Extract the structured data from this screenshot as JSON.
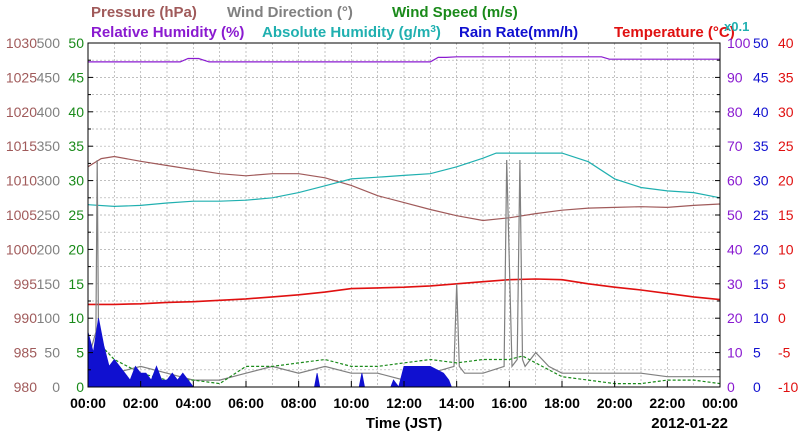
{
  "chart_data": {
    "type": "line",
    "date": "2012-01-22",
    "xlabel": "Time (JST)",
    "x_ticks": [
      "00:00",
      "02:00",
      "04:00",
      "06:00",
      "08:00",
      "10:00",
      "12:00",
      "14:00",
      "16:00",
      "18:00",
      "20:00",
      "22:00",
      "00:00"
    ],
    "xlim_hours": [
      0,
      24
    ],
    "grid": true,
    "legend_rows": [
      [
        {
          "name": "Pressure (hPa)",
          "color": "#a05a5a"
        },
        {
          "name": "Wind Direction (°)",
          "color": "#808080"
        },
        {
          "name": "Wind Speed (m/s)",
          "color": "#1a8a1a"
        }
      ],
      [
        {
          "name": "Relative Humidity (%)",
          "color": "#8a1ad0"
        },
        {
          "name": "Absolute Humidity (g/m",
          "sup": "3",
          "tail": ")",
          "color": "#20b0b0"
        },
        {
          "name": "Rain Rate(mm/h)",
          "color": "#1010d0"
        },
        {
          "name": "Temperature (°C)",
          "color": "#e01010"
        }
      ]
    ],
    "abs_humidity_scale_note": "x0.1",
    "axes": [
      {
        "id": "pressure",
        "side": "left",
        "color": "#a05a5a",
        "range": [
          980,
          1030
        ],
        "ticks": [
          "1030",
          "1025",
          "1020",
          "1015",
          "1010",
          "1005",
          "1000",
          "995",
          "990",
          "985",
          "980"
        ]
      },
      {
        "id": "wind_dir",
        "side": "left",
        "color": "#808080",
        "range": [
          0,
          500
        ],
        "ticks": [
          "500",
          "450",
          "400",
          "350",
          "300",
          "250",
          "200",
          "150",
          "100",
          "50",
          "0"
        ]
      },
      {
        "id": "wind_speed",
        "side": "left",
        "color": "#1a8a1a",
        "range": [
          0,
          50
        ],
        "ticks": [
          "50",
          "45",
          "40",
          "35",
          "30",
          "25",
          "20",
          "15",
          "10",
          "5",
          "0"
        ]
      },
      {
        "id": "rel_humidity",
        "side": "right",
        "color": "#8a1ad0",
        "range": [
          0,
          100
        ],
        "ticks": [
          "100",
          "90",
          "80",
          "70",
          "60",
          "50",
          "40",
          "30",
          "20",
          "10",
          "0"
        ]
      },
      {
        "id": "rain_rate",
        "side": "right",
        "color": "#1010d0",
        "range": [
          0,
          50
        ],
        "ticks": [
          "50",
          "45",
          "40",
          "35",
          "30",
          "25",
          "20",
          "15",
          "10",
          "5",
          "0"
        ]
      },
      {
        "id": "temperature",
        "side": "right",
        "color": "#e01010",
        "range": [
          -10,
          40
        ],
        "ticks": [
          "40",
          "35",
          "30",
          "25",
          "20",
          "15",
          "10",
          "5",
          "0",
          "-5",
          "-10"
        ]
      }
    ],
    "series": [
      {
        "name": "Pressure (hPa)",
        "axis": "pressure",
        "color": "#a05a5a",
        "x": [
          0,
          0.5,
          1,
          2,
          3,
          4,
          5,
          6,
          7,
          8,
          9,
          10,
          11,
          12,
          13,
          14,
          15,
          16,
          17,
          18,
          19,
          20,
          21,
          22,
          23,
          24
        ],
        "values": [
          1012,
          1013.2,
          1013.5,
          1012.8,
          1012.2,
          1011.6,
          1011.0,
          1010.7,
          1011.0,
          1011.0,
          1010.4,
          1009.3,
          1007.8,
          1006.8,
          1005.8,
          1004.9,
          1004.2,
          1004.6,
          1005.2,
          1005.7,
          1006.0,
          1006.1,
          1006.2,
          1006.1,
          1006.4,
          1006.6
        ]
      },
      {
        "name": "Relative Humidity (%)",
        "axis": "rel_humidity",
        "color": "#8a1ad0",
        "x": [
          0,
          3.5,
          3.8,
          4.2,
          4.6,
          13,
          13.3,
          13.6,
          14,
          19.5,
          19.8,
          20.1,
          20.4,
          24
        ],
        "values": [
          94.5,
          94.5,
          95.5,
          95.5,
          94.5,
          94.5,
          95.8,
          95.8,
          96,
          96,
          95.3,
          95.3,
          95.3,
          95.3
        ]
      },
      {
        "name": "Absolute Humidity (g/m³)",
        "axis": "rel_humidity",
        "color": "#20b0b0",
        "x": [
          0,
          1,
          2,
          3,
          4,
          5,
          6,
          7,
          8,
          9,
          10,
          11,
          12,
          13,
          14,
          15,
          15.5,
          16,
          17,
          18,
          19,
          20,
          21,
          22,
          23,
          24
        ],
        "values": [
          53,
          52.5,
          52.8,
          53.5,
          54,
          54,
          54.3,
          55,
          56.5,
          58.5,
          60.5,
          61,
          61.5,
          62,
          64,
          66.5,
          68,
          68,
          68,
          68,
          65.5,
          60.5,
          58,
          57,
          56.5,
          55
        ]
      },
      {
        "name": "Temperature (°C)",
        "axis": "temperature",
        "color": "#e01010",
        "x": [
          0,
          1,
          2,
          3,
          4,
          5,
          6,
          7,
          8,
          9,
          10,
          11,
          12,
          13,
          14,
          15,
          16,
          17,
          18,
          19,
          20,
          21,
          22,
          23,
          24
        ],
        "values": [
          2.0,
          2.0,
          2.1,
          2.3,
          2.4,
          2.6,
          2.8,
          3.1,
          3.4,
          3.8,
          4.3,
          4.4,
          4.5,
          4.7,
          5.0,
          5.3,
          5.6,
          5.7,
          5.6,
          5.0,
          4.5,
          4.1,
          3.6,
          3.1,
          2.7
        ]
      },
      {
        "name": "Wind Direction (°)",
        "axis": "wind_dir",
        "color": "#808080",
        "x": [
          0,
          0.3,
          0.35,
          0.4,
          0.5,
          0.6,
          1,
          2,
          3,
          4,
          5,
          6,
          7,
          8,
          9,
          10,
          11,
          12,
          13,
          13.9,
          14,
          14.1,
          14.3,
          15,
          15.8,
          15.9,
          16.1,
          16.3,
          16.4,
          16.5,
          16.6,
          17,
          17.5,
          18,
          19,
          20,
          21,
          22,
          23,
          24
        ],
        "values": [
          40,
          80,
          330,
          80,
          60,
          40,
          20,
          30,
          20,
          10,
          10,
          20,
          30,
          20,
          30,
          20,
          20,
          10,
          20,
          30,
          150,
          30,
          20,
          20,
          30,
          330,
          30,
          40,
          330,
          40,
          30,
          50,
          30,
          20,
          20,
          20,
          20,
          15,
          15,
          15
        ]
      },
      {
        "name": "Wind Speed (m/s)",
        "axis": "wind_speed",
        "color": "#1a8a1a",
        "x": [
          0,
          0.5,
          1,
          2,
          3,
          4,
          5,
          6,
          7,
          8,
          9,
          10,
          11,
          12,
          13,
          14,
          15,
          16,
          16.5,
          17,
          17.5,
          18,
          19,
          20,
          21,
          22,
          23,
          24
        ],
        "values": [
          3,
          6,
          4,
          2,
          1,
          1,
          0.5,
          3,
          3,
          3.5,
          4,
          3,
          3,
          3.5,
          4,
          3.5,
          4,
          4,
          4.5,
          3.5,
          2.5,
          1.5,
          1,
          0.5,
          0.5,
          1,
          1,
          0.5
        ]
      },
      {
        "name": "Rain Rate(mm/h)",
        "axis": "rain_rate",
        "color": "#1010d0",
        "x": [
          0,
          0.2,
          0.4,
          0.6,
          0.8,
          1,
          1.2,
          1.4,
          1.6,
          1.8,
          2,
          2.2,
          2.4,
          2.6,
          2.8,
          3,
          3.2,
          3.4,
          3.6,
          3.8,
          4,
          5,
          6,
          7,
          8,
          8.6,
          8.7,
          8.8,
          9,
          10,
          10.3,
          10.4,
          10.5,
          11,
          11.5,
          11.6,
          11.8,
          12,
          12.5,
          13,
          13.5,
          13.7,
          13.8,
          14,
          15,
          24
        ],
        "values": [
          8,
          5,
          10,
          6,
          3,
          4,
          3,
          2,
          1,
          3,
          2,
          2,
          1,
          3,
          1,
          1,
          2,
          1,
          2,
          1,
          0,
          0,
          0,
          0,
          0,
          0,
          2,
          0,
          0,
          0,
          0,
          2,
          0,
          0,
          0,
          1,
          0,
          3,
          3,
          3,
          2,
          1,
          0,
          0,
          0,
          0
        ]
      }
    ]
  }
}
